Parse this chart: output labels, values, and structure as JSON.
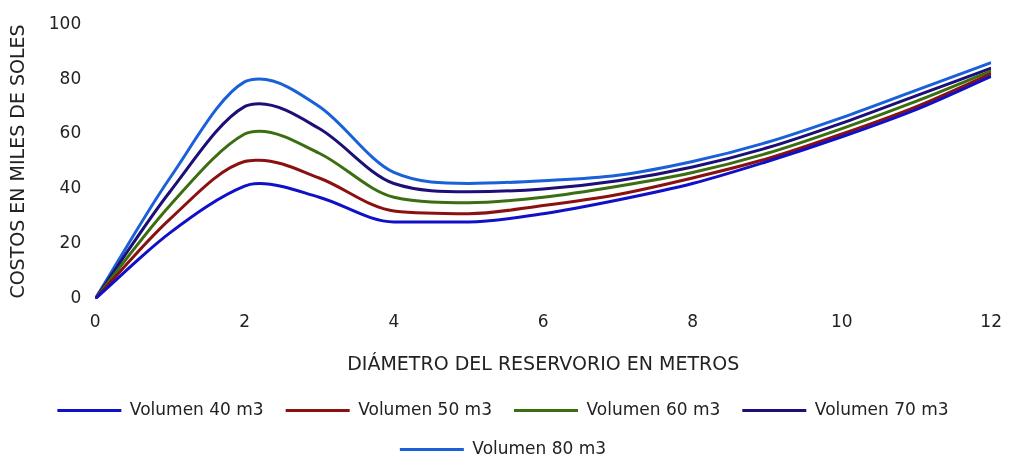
{
  "chart_data": {
    "type": "line",
    "xlabel": "DIÁMETRO DEL RESERVORIO EN METROS",
    "ylabel": "COSTOS EN MILES DE SOLES",
    "x": [
      0,
      1,
      2,
      2.2,
      3,
      4,
      5,
      6,
      7,
      8,
      9,
      10,
      11,
      12
    ],
    "series": [
      {
        "name": "Volumen 40 m3",
        "color": "#1010c8",
        "values": [
          0,
          24,
          41,
          42,
          37,
          28,
          28,
          31,
          36,
          42,
          50,
          59,
          69,
          81
        ]
      },
      {
        "name": "Volumen 50 m3",
        "color": "#8b1010",
        "values": [
          0,
          29,
          50,
          50.5,
          44,
          32,
          31,
          34,
          38,
          44,
          51,
          60,
          70,
          82
        ]
      },
      {
        "name": "Volumen 60 m3",
        "color": "#3a6e10",
        "values": [
          0,
          34,
          60,
          61,
          53,
          37,
          35,
          37,
          41,
          46,
          53,
          62,
          72,
          83
        ]
      },
      {
        "name": "Volumen 70 m3",
        "color": "#1c0f78",
        "values": [
          0,
          39,
          70,
          71,
          62,
          42,
          39,
          40,
          43,
          48,
          55,
          64,
          74,
          84
        ]
      },
      {
        "name": "Volumen 80 m3",
        "color": "#1a60d8",
        "values": [
          0,
          44,
          79,
          80,
          70,
          46,
          42,
          43,
          45,
          50,
          57,
          66,
          76,
          86
        ]
      }
    ],
    "xlim": [
      0,
      12
    ],
    "xticks": [
      0,
      2,
      4,
      6,
      8,
      10,
      12
    ],
    "ylim": [
      0,
      100
    ],
    "yticks": [
      0,
      20,
      40,
      60,
      80,
      100
    ],
    "grid": false,
    "legend": "bottom",
    "marker": "none",
    "line_style": "solid"
  }
}
